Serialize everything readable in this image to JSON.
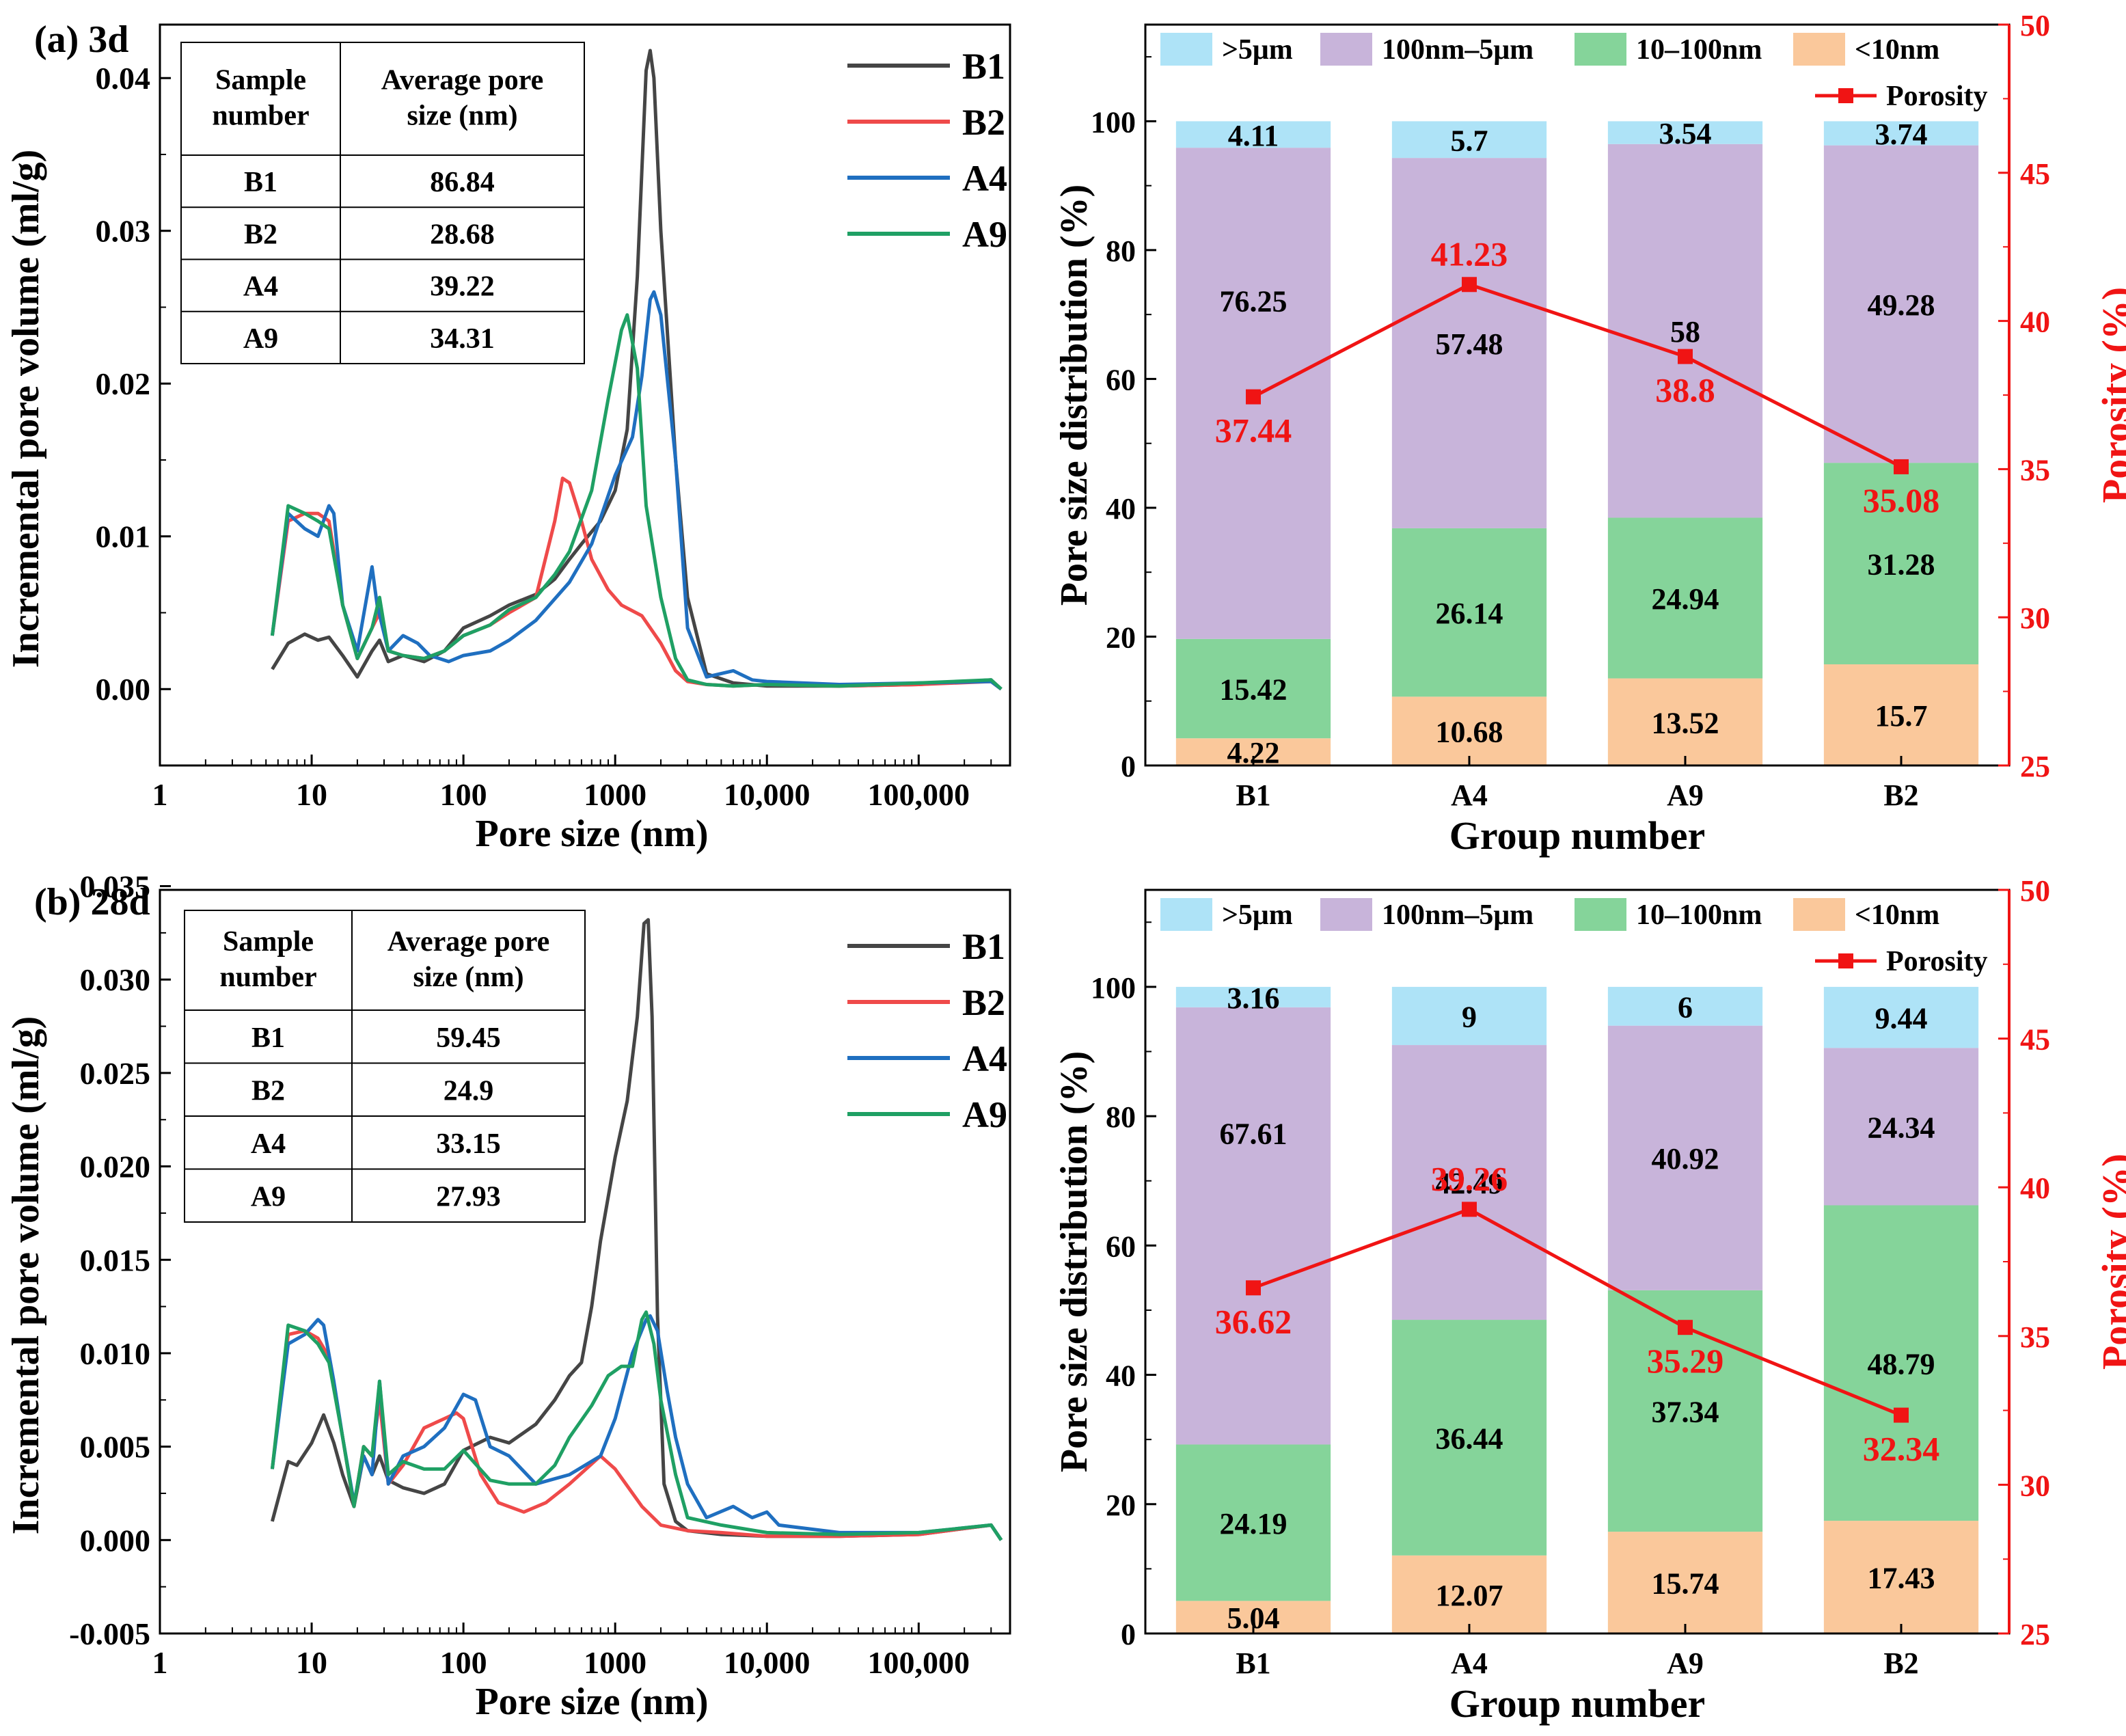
{
  "figure": {
    "colors": {
      "B1": "#454545",
      "B2": "#ef4a4a",
      "A4": "#1f6fc0",
      "A9": "#1fa064",
      "gt5um": "#aee3f7",
      "nm100_5um": "#c8b4da",
      "nm10_100": "#85d49a",
      "lt10nm": "#fac89b",
      "porosity": "#f01414"
    }
  },
  "chart_data": [
    {
      "id": "a_left",
      "type": "line",
      "panel_label": "(a) 3d",
      "xlabel": "Pore size (nm)",
      "ylabel": "Incremental pore volume (ml/g)",
      "xscale": "log",
      "xlim": [
        1,
        400000
      ],
      "ylim": [
        -0.005,
        0.0435
      ],
      "x_ticks": [
        "1",
        "10",
        "100",
        "1000",
        "10,000",
        "100,000"
      ],
      "y_ticks": [
        "0.00",
        "0.01",
        "0.02",
        "0.03",
        "0.04"
      ],
      "legend": [
        "B1",
        "B2",
        "A4",
        "A9"
      ],
      "table": {
        "headers": [
          [
            "Sample",
            "number"
          ],
          [
            "Average pore",
            "size (nm)"
          ]
        ],
        "rows": [
          [
            "B1",
            "86.84"
          ],
          [
            "B2",
            "28.68"
          ],
          [
            "A4",
            "39.22"
          ],
          [
            "A9",
            "34.31"
          ]
        ]
      },
      "series": [
        {
          "name": "B1",
          "x": [
            5.5,
            7,
            9,
            11,
            13,
            16,
            20,
            25,
            28,
            32,
            40,
            55,
            75,
            100,
            150,
            200,
            300,
            400,
            500,
            600,
            800,
            1000,
            1200,
            1400,
            1600,
            1700,
            1800,
            2000,
            2500,
            3000,
            4000,
            6000,
            10000,
            30000,
            100000,
            300000,
            350000
          ],
          "y": [
            0.0013,
            0.003,
            0.0036,
            0.0032,
            0.0034,
            0.0022,
            0.0008,
            0.0025,
            0.0032,
            0.0018,
            0.0022,
            0.0018,
            0.0025,
            0.004,
            0.0048,
            0.0055,
            0.0062,
            0.0072,
            0.0085,
            0.0095,
            0.011,
            0.013,
            0.017,
            0.027,
            0.0405,
            0.0418,
            0.04,
            0.03,
            0.015,
            0.006,
            0.001,
            0.0004,
            0.0002,
            0.0002,
            0.0003,
            0.0006,
            0.0
          ]
        },
        {
          "name": "B2",
          "x": [
            5.5,
            7,
            9,
            11,
            13,
            16,
            20,
            25,
            28,
            32,
            40,
            55,
            75,
            100,
            150,
            200,
            300,
            400,
            450,
            500,
            600,
            700,
            900,
            1100,
            1500,
            2000,
            2500,
            3000,
            4000,
            6000,
            10000,
            30000,
            100000,
            300000,
            350000
          ],
          "y": [
            0.0035,
            0.011,
            0.0115,
            0.0115,
            0.011,
            0.0055,
            0.002,
            0.004,
            0.005,
            0.0025,
            0.0022,
            0.002,
            0.0025,
            0.0035,
            0.0042,
            0.005,
            0.006,
            0.011,
            0.0138,
            0.0135,
            0.011,
            0.0085,
            0.0065,
            0.0055,
            0.0048,
            0.003,
            0.0012,
            0.0005,
            0.0003,
            0.0002,
            0.0003,
            0.0002,
            0.0003,
            0.0005,
            0.0
          ]
        },
        {
          "name": "A4",
          "x": [
            5.5,
            7,
            9,
            11,
            13,
            14,
            16,
            20,
            25,
            27,
            32,
            40,
            50,
            60,
            80,
            100,
            150,
            200,
            300,
            500,
            700,
            1000,
            1300,
            1500,
            1700,
            1800,
            2000,
            2500,
            3000,
            4000,
            6000,
            8000,
            10000,
            30000,
            100000,
            300000,
            350000
          ],
          "y": [
            0.0035,
            0.0115,
            0.0105,
            0.01,
            0.012,
            0.0115,
            0.0055,
            0.0025,
            0.008,
            0.0055,
            0.0025,
            0.0035,
            0.003,
            0.0022,
            0.0018,
            0.0022,
            0.0025,
            0.0032,
            0.0045,
            0.007,
            0.0095,
            0.014,
            0.0165,
            0.0205,
            0.0255,
            0.026,
            0.0245,
            0.015,
            0.004,
            0.0008,
            0.0012,
            0.0006,
            0.0005,
            0.0003,
            0.0004,
            0.0005,
            0.0
          ]
        },
        {
          "name": "A9",
          "x": [
            5.5,
            7,
            9,
            11,
            13,
            16,
            20,
            25,
            28,
            32,
            40,
            55,
            75,
            100,
            150,
            200,
            300,
            400,
            500,
            700,
            900,
            1100,
            1200,
            1400,
            1600,
            2000,
            2500,
            3000,
            4000,
            6000,
            10000,
            30000,
            100000,
            300000,
            350000
          ],
          "y": [
            0.0035,
            0.012,
            0.0115,
            0.011,
            0.0105,
            0.0055,
            0.002,
            0.004,
            0.006,
            0.0025,
            0.0022,
            0.002,
            0.0025,
            0.0035,
            0.0042,
            0.0052,
            0.006,
            0.0075,
            0.009,
            0.013,
            0.019,
            0.0235,
            0.0245,
            0.021,
            0.012,
            0.006,
            0.002,
            0.0006,
            0.0003,
            0.0002,
            0.0003,
            0.0002,
            0.0004,
            0.0006,
            0.0
          ]
        }
      ]
    },
    {
      "id": "a_right",
      "type": "bar",
      "stacked": true,
      "xlabel": "Group number",
      "ylabel": "Pore size distribution (%)",
      "y2label": "Porosity (%)",
      "categories": [
        "B1",
        "A4",
        "A9",
        "B2"
      ],
      "ylim": [
        0,
        115
      ],
      "y2lim": [
        25,
        50
      ],
      "y_ticks": [
        "0",
        "20",
        "40",
        "60",
        "80",
        "100"
      ],
      "y2_ticks": [
        "25",
        "30",
        "35",
        "40",
        "45",
        "50"
      ],
      "legend": [
        ">5μm",
        "100nm–5μm",
        "10–100nm",
        "<10nm",
        "Porosity"
      ],
      "series": [
        {
          "name": "<10nm",
          "values": [
            4.22,
            10.68,
            13.52,
            15.7
          ]
        },
        {
          "name": "10–100nm",
          "values": [
            15.42,
            26.14,
            24.94,
            31.28
          ]
        },
        {
          "name": "100nm–5μm",
          "values": [
            76.25,
            57.48,
            58,
            49.28
          ]
        },
        {
          "name": ">5μm",
          "values": [
            4.11,
            5.7,
            3.54,
            3.74
          ]
        }
      ],
      "labels": [
        [
          "4.22",
          "10.68",
          "13.52",
          "15.7"
        ],
        [
          "15.42",
          "26.14",
          "24.94",
          "31.28"
        ],
        [
          "76.25",
          "57.48",
          "58",
          "49.28"
        ],
        [
          "4.11",
          "5.7",
          "3.54",
          "3.74"
        ]
      ],
      "porosity": {
        "name": "Porosity",
        "values": [
          37.44,
          41.23,
          38.8,
          35.08
        ],
        "labels": [
          "37.44",
          "41.23",
          "38.8",
          "35.08"
        ]
      }
    },
    {
      "id": "b_left",
      "type": "line",
      "panel_label": "(b) 28d",
      "xlabel": "Pore size (nm)",
      "ylabel": "Incremental pore volume (ml/g)",
      "xscale": "log",
      "xlim": [
        1,
        400000
      ],
      "ylim": [
        -0.005,
        0.0348
      ],
      "x_ticks": [
        "1",
        "10",
        "100",
        "1000",
        "10,000",
        "100,000"
      ],
      "y_ticks": [
        "-0.005",
        "0.000",
        "0.005",
        "0.010",
        "0.015",
        "0.020",
        "0.025",
        "0.030",
        "0.035"
      ],
      "legend": [
        "B1",
        "B2",
        "A4",
        "A9"
      ],
      "table": {
        "headers": [
          [
            "Sample",
            "number"
          ],
          [
            "Average pore",
            "size (nm)"
          ]
        ],
        "rows": [
          [
            "B1",
            "59.45"
          ],
          [
            "B2",
            "24.9"
          ],
          [
            "A4",
            "33.15"
          ],
          [
            "A9",
            "27.93"
          ]
        ]
      },
      "series": [
        {
          "name": "B1",
          "x": [
            5.5,
            7,
            8,
            10,
            12,
            14,
            16,
            19,
            22,
            25,
            28,
            32,
            40,
            55,
            75,
            100,
            150,
            200,
            300,
            400,
            500,
            600,
            700,
            800,
            1000,
            1200,
            1400,
            1550,
            1650,
            1750,
            1900,
            2100,
            2500,
            3000,
            5000,
            10000,
            30000,
            100000,
            300000,
            350000
          ],
          "y": [
            0.001,
            0.0042,
            0.004,
            0.0052,
            0.0067,
            0.0052,
            0.0035,
            0.0018,
            0.0045,
            0.0035,
            0.0045,
            0.0032,
            0.0028,
            0.0025,
            0.003,
            0.0048,
            0.0055,
            0.0052,
            0.0062,
            0.0075,
            0.0088,
            0.0095,
            0.0125,
            0.016,
            0.0205,
            0.0235,
            0.028,
            0.033,
            0.0332,
            0.028,
            0.012,
            0.003,
            0.001,
            0.0005,
            0.0003,
            0.0002,
            0.0002,
            0.0003,
            0.0008,
            0.0
          ]
        },
        {
          "name": "B2",
          "x": [
            5.5,
            7,
            9,
            11,
            13,
            16,
            19,
            22,
            25,
            28,
            32,
            40,
            55,
            75,
            90,
            100,
            130,
            170,
            250,
            350,
            500,
            800,
            1000,
            1500,
            2000,
            3000,
            5000,
            10000,
            30000,
            100000,
            300000,
            350000
          ],
          "y": [
            0.0038,
            0.011,
            0.0112,
            0.0108,
            0.0098,
            0.0055,
            0.0018,
            0.005,
            0.0045,
            0.0075,
            0.003,
            0.004,
            0.006,
            0.0065,
            0.0068,
            0.0065,
            0.0035,
            0.002,
            0.0015,
            0.002,
            0.003,
            0.0045,
            0.0038,
            0.0018,
            0.0008,
            0.0005,
            0.0004,
            0.0002,
            0.0002,
            0.0003,
            0.0008,
            0.0
          ]
        },
        {
          "name": "A4",
          "x": [
            5.5,
            7,
            9,
            11,
            12,
            14,
            16,
            19,
            22,
            25,
            28,
            32,
            40,
            55,
            75,
            100,
            120,
            150,
            200,
            300,
            500,
            800,
            1000,
            1300,
            1600,
            1700,
            1900,
            2200,
            2500,
            3000,
            4000,
            6000,
            8000,
            10000,
            12000,
            30000,
            100000,
            300000,
            350000
          ],
          "y": [
            0.0038,
            0.0105,
            0.011,
            0.0118,
            0.0115,
            0.0085,
            0.0055,
            0.002,
            0.0045,
            0.0035,
            0.0085,
            0.003,
            0.0045,
            0.005,
            0.006,
            0.0078,
            0.0075,
            0.005,
            0.0045,
            0.003,
            0.0035,
            0.0045,
            0.0065,
            0.01,
            0.0118,
            0.012,
            0.0112,
            0.008,
            0.0055,
            0.003,
            0.0012,
            0.0018,
            0.0012,
            0.0015,
            0.0008,
            0.0004,
            0.0004,
            0.0008,
            0.0
          ]
        },
        {
          "name": "A9",
          "x": [
            5.5,
            7,
            9,
            11,
            13,
            16,
            19,
            22,
            25,
            28,
            32,
            40,
            55,
            75,
            100,
            150,
            200,
            300,
            400,
            500,
            700,
            900,
            1100,
            1300,
            1500,
            1600,
            1800,
            2000,
            2500,
            3000,
            5000,
            10000,
            30000,
            100000,
            300000,
            350000
          ],
          "y": [
            0.0038,
            0.0115,
            0.0112,
            0.0105,
            0.0095,
            0.0055,
            0.0018,
            0.005,
            0.0045,
            0.0085,
            0.0035,
            0.0042,
            0.0038,
            0.0038,
            0.0048,
            0.0032,
            0.003,
            0.003,
            0.004,
            0.0055,
            0.0072,
            0.0088,
            0.0093,
            0.0093,
            0.0118,
            0.0122,
            0.0105,
            0.0075,
            0.0035,
            0.0012,
            0.0008,
            0.0004,
            0.0003,
            0.0004,
            0.0008,
            0.0
          ]
        }
      ]
    },
    {
      "id": "b_right",
      "type": "bar",
      "stacked": true,
      "xlabel": "Group number",
      "ylabel": "Pore size distribution (%)",
      "y2label": "Porosity (%)",
      "categories": [
        "B1",
        "A4",
        "A9",
        "B2"
      ],
      "ylim": [
        0,
        115
      ],
      "y2lim": [
        25,
        50
      ],
      "y_ticks": [
        "0",
        "20",
        "40",
        "60",
        "80",
        "100"
      ],
      "y2_ticks": [
        "25",
        "30",
        "35",
        "40",
        "45",
        "50"
      ],
      "legend": [
        ">5μm",
        "100nm–5μm",
        "10–100nm",
        "<10nm",
        "Porosity"
      ],
      "series": [
        {
          "name": "<10nm",
          "values": [
            5.04,
            12.07,
            15.74,
            17.43
          ]
        },
        {
          "name": "10–100nm",
          "values": [
            24.19,
            36.44,
            37.34,
            48.79
          ]
        },
        {
          "name": "100nm–5μm",
          "values": [
            67.61,
            42.49,
            40.92,
            24.34
          ]
        },
        {
          "name": ">5μm",
          "values": [
            3.16,
            9,
            6,
            9.44
          ]
        }
      ],
      "labels": [
        [
          "5.04",
          "12.07",
          "15.74",
          "17.43"
        ],
        [
          "24.19",
          "36.44",
          "37.34",
          "48.79"
        ],
        [
          "67.61",
          "42.49",
          "40.92",
          "24.34"
        ],
        [
          "3.16",
          "9",
          "6",
          "9.44"
        ]
      ],
      "porosity": {
        "name": "Porosity",
        "values": [
          36.62,
          39.26,
          35.29,
          32.34
        ],
        "labels": [
          "36.62",
          "39.26",
          "35.29",
          "32.34"
        ]
      }
    }
  ]
}
